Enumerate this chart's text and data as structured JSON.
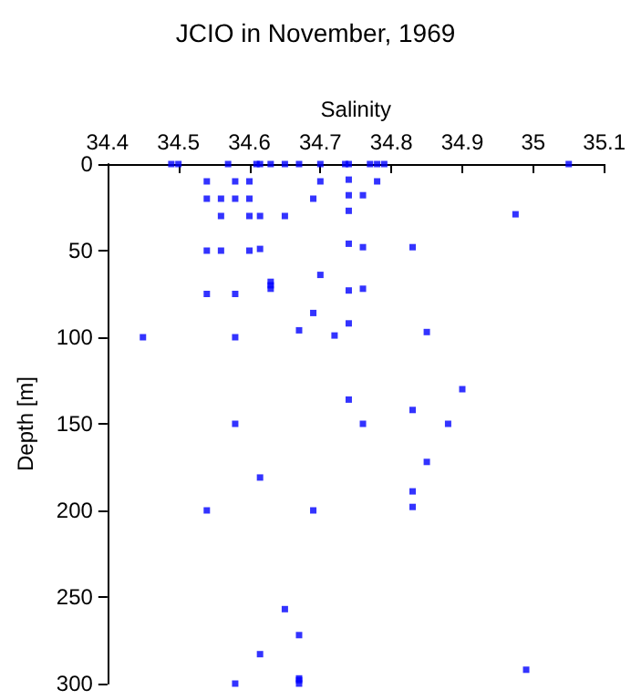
{
  "chart_data": {
    "type": "scatter",
    "title": "JCIO in November, 1969",
    "xlabel": "Salinity",
    "ylabel": "Depth [m]",
    "x": [
      34.49,
      34.5,
      34.57,
      34.61,
      34.615,
      34.63,
      34.65,
      34.67,
      34.7,
      34.735,
      34.74,
      34.77,
      34.78,
      34.79,
      35.05,
      34.54,
      34.58,
      34.6,
      34.7,
      34.74,
      34.78,
      34.54,
      34.56,
      34.58,
      34.6,
      34.69,
      34.74,
      34.76,
      34.56,
      34.6,
      34.615,
      34.65,
      34.74,
      34.975,
      34.54,
      34.56,
      34.6,
      34.615,
      34.74,
      34.76,
      34.83,
      34.7,
      34.63,
      34.63,
      34.63,
      34.54,
      34.58,
      34.74,
      34.76,
      34.69,
      34.74,
      34.67,
      34.72,
      34.45,
      34.58,
      34.85,
      34.9,
      34.74,
      34.83,
      34.58,
      34.76,
      34.88,
      34.85,
      34.615,
      34.83,
      34.83,
      34.54,
      34.69,
      34.65,
      34.67,
      34.615,
      34.99,
      34.58,
      34.67,
      34.67,
      34.67
    ],
    "values": [
      0,
      0,
      0,
      0,
      0,
      0,
      0,
      0,
      0,
      0,
      0,
      0,
      0,
      0,
      0,
      10,
      10,
      10,
      10,
      9,
      10,
      20,
      20,
      20,
      20,
      20,
      18,
      18,
      30,
      30,
      30,
      30,
      27,
      29,
      50,
      50,
      50,
      49,
      46,
      48,
      48,
      64,
      68,
      70,
      72,
      75,
      75,
      73,
      72,
      86,
      92,
      96,
      99,
      100,
      100,
      97,
      130,
      136,
      142,
      150,
      150,
      150,
      172,
      181,
      189,
      198,
      200,
      200,
      257,
      272,
      283,
      292,
      300,
      297,
      298,
      300
    ],
    "color": "#0000ff",
    "marker": "square",
    "xlim": [
      34.4,
      35.1
    ],
    "xticks": [
      34.4,
      34.5,
      34.6,
      34.7,
      34.8,
      34.9,
      35,
      35.1
    ],
    "ylim": [
      300,
      0
    ],
    "yticks": [
      0,
      50,
      100,
      150,
      200,
      250,
      300
    ],
    "grid": false
  }
}
